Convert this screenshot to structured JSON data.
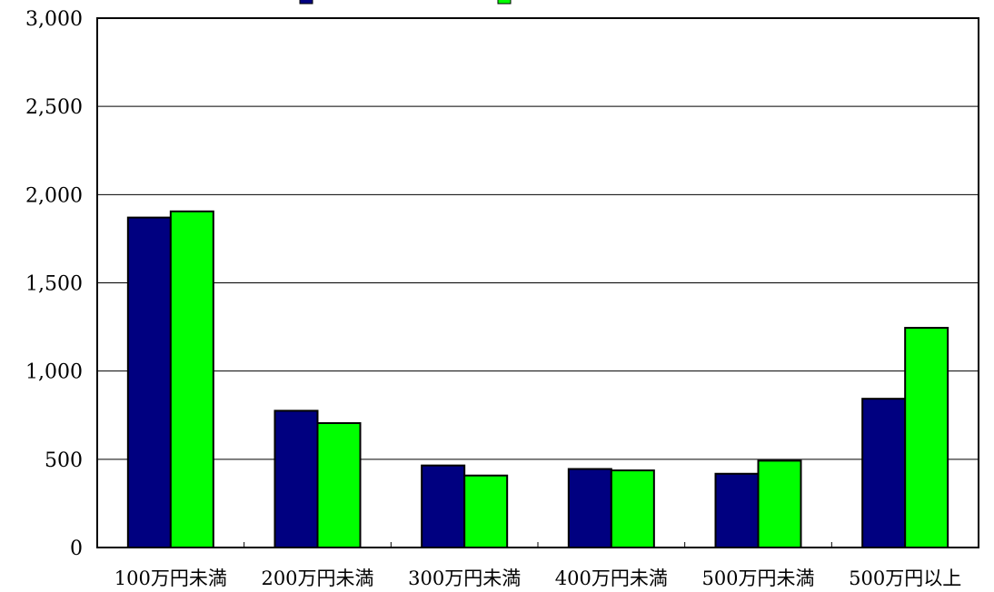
{
  "chart_data": {
    "type": "bar",
    "categories": [
      "100万円未満",
      "200万円未満",
      "300万円未満",
      "400万円未満",
      "500万円未満",
      "500万円以上"
    ],
    "series": [
      {
        "name": "",
        "color": "#000080",
        "values": [
          1870,
          775,
          465,
          445,
          418,
          843
        ]
      },
      {
        "name": "",
        "color": "#00FF00",
        "values": [
          1905,
          705,
          408,
          437,
          492,
          1245
        ]
      }
    ],
    "ylim": [
      0,
      3000
    ],
    "yticks": [
      0,
      500,
      1000,
      1500,
      2000,
      2500,
      3000
    ],
    "ytick_labels": [
      "0",
      "500",
      "1,000",
      "1,500",
      "2,000",
      "2,500",
      "3,000"
    ],
    "grid": true,
    "legend_position": "top"
  }
}
